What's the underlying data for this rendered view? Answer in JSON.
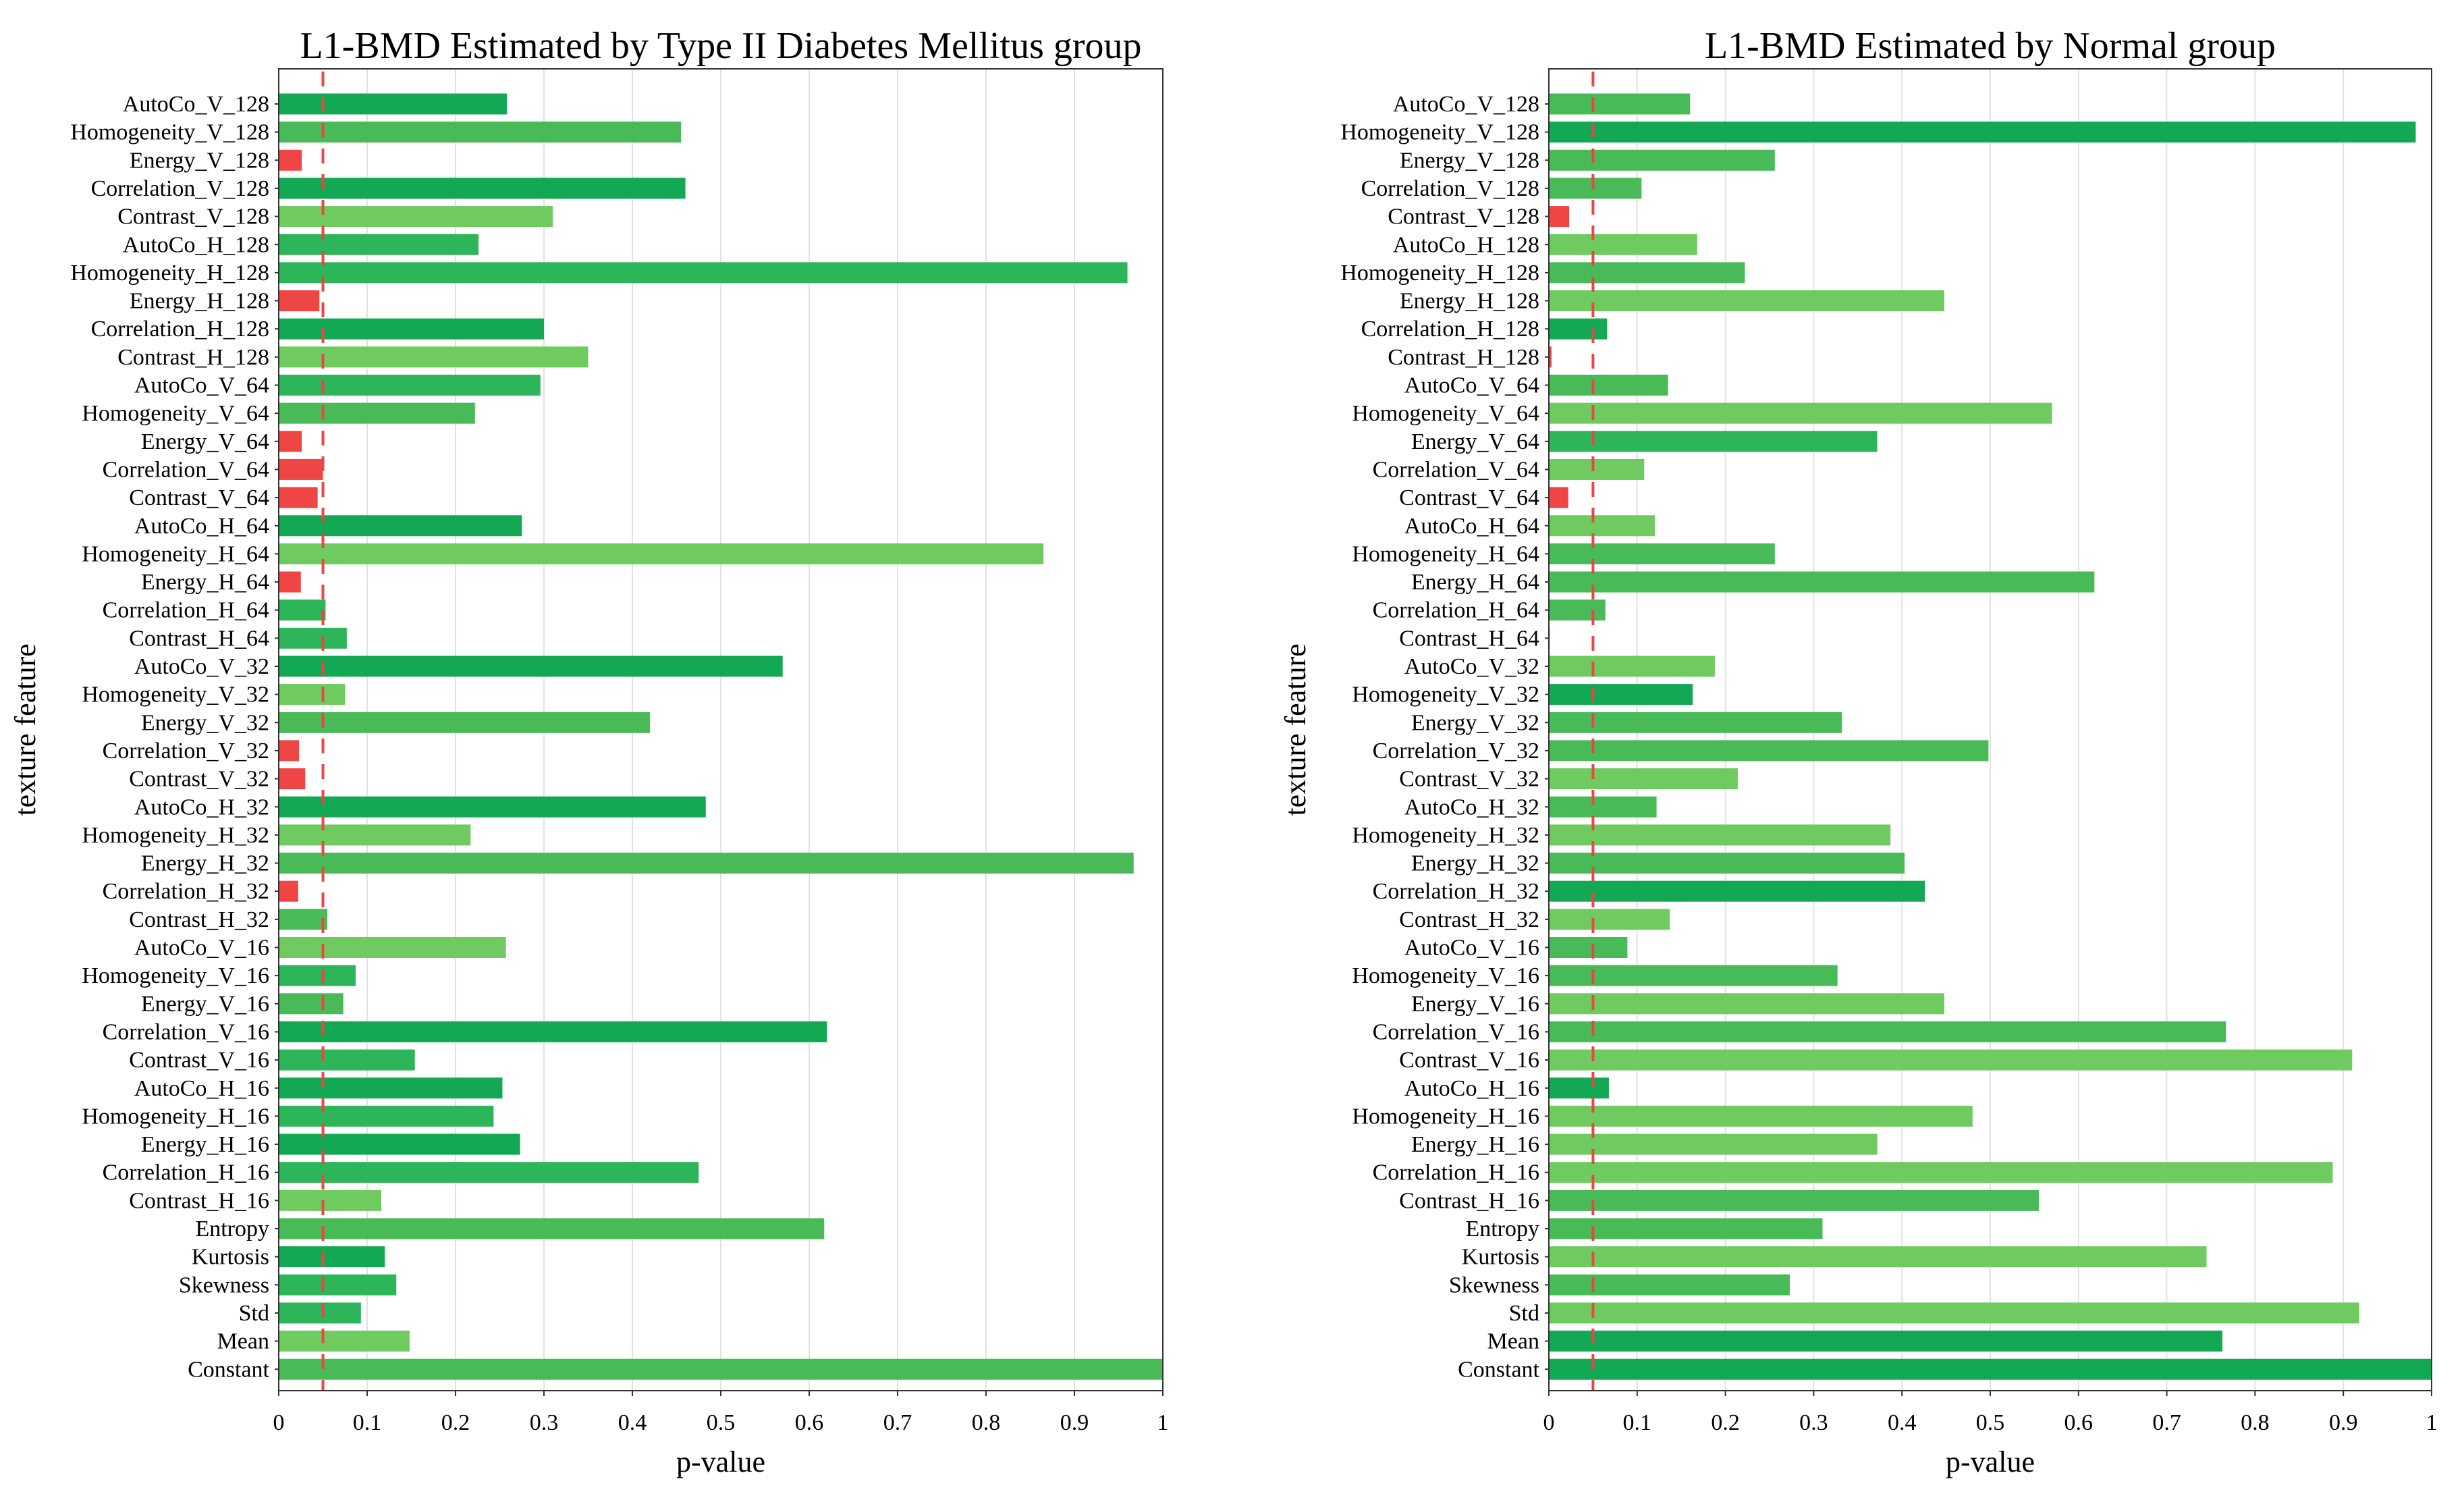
{
  "chart_data": [
    {
      "type": "bar",
      "orientation": "horizontal",
      "title": "L1-BMD Estimated by Type II Diabetes Mellitus group",
      "xlabel": "p-value",
      "ylabel": "texture feature",
      "xlim": [
        0,
        1
      ],
      "xticks": [
        "0",
        "0.1",
        "0.2",
        "0.3",
        "0.4",
        "0.5",
        "0.6",
        "0.7",
        "0.8",
        "0.9",
        "1"
      ],
      "xtick_values": [
        0,
        0.1,
        0.2,
        0.3,
        0.4,
        0.5,
        0.6,
        0.7,
        0.8,
        0.9,
        1
      ],
      "grid": true,
      "threshold": 0.05,
      "threshold_color": "#ef4444",
      "significant_color": "#f04545",
      "categories": [
        "AutoCo_V_128",
        "Homogeneity_V_128",
        "Energy_V_128",
        "Correlation_V_128",
        "Contrast_V_128",
        "AutoCo_H_128",
        "Homogeneity_H_128",
        "Energy_H_128",
        "Correlation_H_128",
        "Contrast_H_128",
        "AutoCo_V_64",
        "Homogeneity_V_64",
        "Energy_V_64",
        "Correlation_V_64",
        "Contrast_V_64",
        "AutoCo_H_64",
        "Homogeneity_H_64",
        "Energy_H_64",
        "Correlation_H_64",
        "Contrast_H_64",
        "AutoCo_V_32",
        "Homogeneity_V_32",
        "Energy_V_32",
        "Correlation_V_32",
        "Contrast_V_32",
        "AutoCo_H_32",
        "Homogeneity_H_32",
        "Energy_H_32",
        "Correlation_H_32",
        "Contrast_H_32",
        "AutoCo_V_16",
        "Homogeneity_V_16",
        "Energy_V_16",
        "Correlation_V_16",
        "Contrast_V_16",
        "AutoCo_H_16",
        "Homogeneity_H_16",
        "Energy_H_16",
        "Correlation_H_16",
        "Contrast_H_16",
        "Entropy",
        "Kurtosis",
        "Skewness",
        "Std",
        "Mean",
        "Constant"
      ],
      "values": [
        0.258,
        0.455,
        0.026,
        0.46,
        0.31,
        0.226,
        0.96,
        0.046,
        0.3,
        0.35,
        0.296,
        0.222,
        0.026,
        0.05,
        0.044,
        0.275,
        0.865,
        0.025,
        0.053,
        0.077,
        0.57,
        0.075,
        0.42,
        0.023,
        0.03,
        0.483,
        0.217,
        0.967,
        0.022,
        0.055,
        0.257,
        0.087,
        0.073,
        0.62,
        0.154,
        0.253,
        0.243,
        0.273,
        0.475,
        0.116,
        0.617,
        0.12,
        0.133,
        0.093,
        0.148,
        1.0
      ],
      "colors": [
        "#13a854",
        "#48bb58",
        "#f04545",
        "#13a854",
        "#6fcb5f",
        "#2db55a",
        "#2db55a",
        "#f04545",
        "#13a854",
        "#6fcb5f",
        "#2db55a",
        "#48bb58",
        "#f04545",
        "#f04545",
        "#f04545",
        "#13a854",
        "#6fcb5f",
        "#f04545",
        "#2db55a",
        "#2db55a",
        "#13a854",
        "#6fcb5f",
        "#48bb58",
        "#f04545",
        "#f04545",
        "#13a854",
        "#6fcb5f",
        "#48bb58",
        "#f04545",
        "#48bb58",
        "#6fcb5f",
        "#2db55a",
        "#48bb58",
        "#13a854",
        "#2db55a",
        "#13a854",
        "#2db55a",
        "#13a854",
        "#2db55a",
        "#6fcb5f",
        "#48bb58",
        "#13a854",
        "#2db55a",
        "#2db55a",
        "#6fcb5f",
        "#48bb58"
      ]
    },
    {
      "type": "bar",
      "orientation": "horizontal",
      "title": "L1-BMD Estimated by Normal group",
      "xlabel": "p-value",
      "ylabel": "texture feature",
      "xlim": [
        0,
        1
      ],
      "xticks": [
        "0",
        "0.1",
        "0.2",
        "0.3",
        "0.4",
        "0.5",
        "0.6",
        "0.7",
        "0.8",
        "0.9",
        "1"
      ],
      "xtick_values": [
        0,
        0.1,
        0.2,
        0.3,
        0.4,
        0.5,
        0.6,
        0.7,
        0.8,
        0.9,
        1
      ],
      "grid": true,
      "threshold": 0.05,
      "threshold_color": "#ef4444",
      "significant_color": "#f04545",
      "categories": [
        "AutoCo_V_128",
        "Homogeneity_V_128",
        "Energy_V_128",
        "Correlation_V_128",
        "Contrast_V_128",
        "AutoCo_H_128",
        "Homogeneity_H_128",
        "Energy_H_128",
        "Correlation_H_128",
        "Contrast_H_128",
        "AutoCo_V_64",
        "Homogeneity_V_64",
        "Energy_V_64",
        "Correlation_V_64",
        "Contrast_V_64",
        "AutoCo_H_64",
        "Homogeneity_H_64",
        "Energy_H_64",
        "Correlation_H_64",
        "Contrast_H_64",
        "AutoCo_V_32",
        "Homogeneity_V_32",
        "Energy_V_32",
        "Correlation_V_32",
        "Contrast_V_32",
        "AutoCo_H_32",
        "Homogeneity_H_32",
        "Energy_H_32",
        "Correlation_H_32",
        "Contrast_H_32",
        "AutoCo_V_16",
        "Homogeneity_V_16",
        "Energy_V_16",
        "Correlation_V_16",
        "Contrast_V_16",
        "AutoCo_H_16",
        "Homogeneity_H_16",
        "Energy_H_16",
        "Correlation_H_16",
        "Contrast_H_16",
        "Entropy",
        "Kurtosis",
        "Skewness",
        "Std",
        "Mean",
        "Constant"
      ],
      "values": [
        0.16,
        0.982,
        0.256,
        0.105,
        0.023,
        0.168,
        0.222,
        0.448,
        0.066,
        0.003,
        0.135,
        0.57,
        0.372,
        0.108,
        0.022,
        0.12,
        0.256,
        0.618,
        0.064,
        0.001,
        0.188,
        0.163,
        0.332,
        0.498,
        0.214,
        0.122,
        0.387,
        0.403,
        0.426,
        0.137,
        0.089,
        0.327,
        0.448,
        0.767,
        0.91,
        0.068,
        0.48,
        0.372,
        0.888,
        0.555,
        0.31,
        0.745,
        0.273,
        0.918,
        0.763,
        1.0
      ],
      "colors": [
        "#48bb58",
        "#13a854",
        "#48bb58",
        "#48bb58",
        "#f04545",
        "#6fcb5f",
        "#48bb58",
        "#6fcb5f",
        "#13a854",
        "#f04545",
        "#48bb58",
        "#6fcb5f",
        "#2db55a",
        "#6fcb5f",
        "#f04545",
        "#6fcb5f",
        "#48bb58",
        "#48bb58",
        "#48bb58",
        "#f04545",
        "#6fcb5f",
        "#13a854",
        "#48bb58",
        "#48bb58",
        "#6fcb5f",
        "#48bb58",
        "#6fcb5f",
        "#48bb58",
        "#13a854",
        "#6fcb5f",
        "#48bb58",
        "#48bb58",
        "#6fcb5f",
        "#48bb58",
        "#6fcb5f",
        "#13a854",
        "#6fcb5f",
        "#6fcb5f",
        "#6fcb5f",
        "#48bb58",
        "#48bb58",
        "#6fcb5f",
        "#48bb58",
        "#6fcb5f",
        "#13a854",
        "#13a854"
      ]
    }
  ]
}
